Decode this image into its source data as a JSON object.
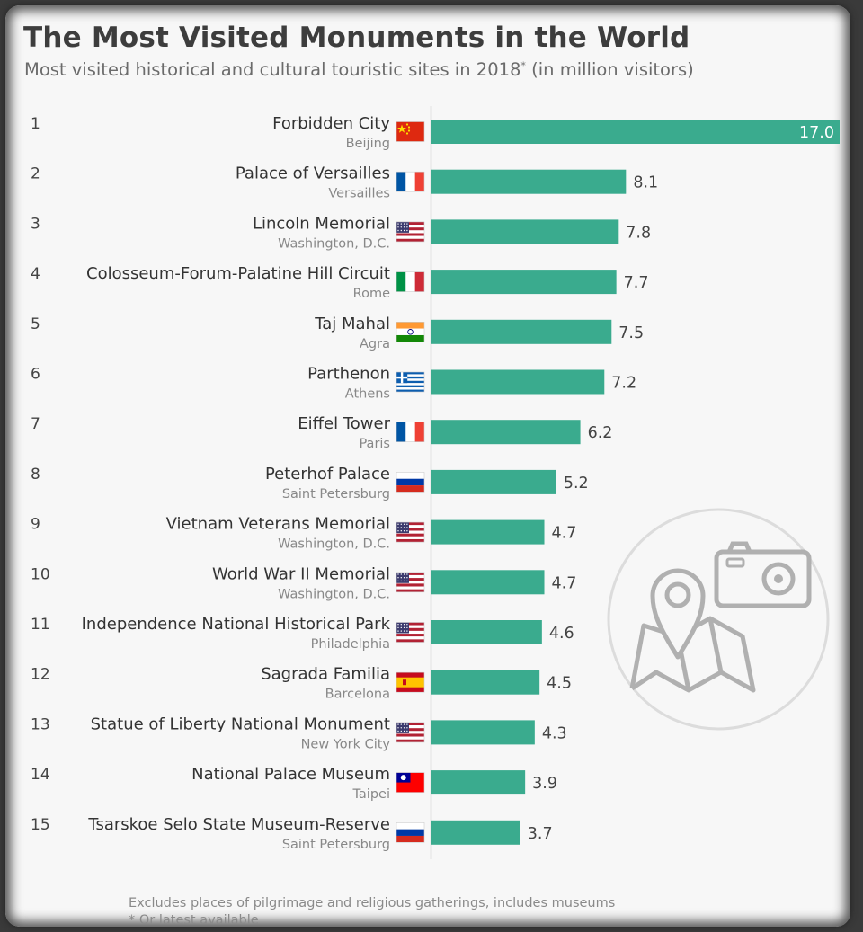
{
  "title": "The Most Visited Monuments in the World",
  "subtitle": "Most visited historical and cultural touristic sites in 2018",
  "subtitle_mark": "*",
  "subtitle_unit": " (in million visitors)",
  "footnotes": [
    "Excludes places of pilgrimage and religious gatherings, includes museums",
    "* Or latest available"
  ],
  "colors": {
    "bar": "#3aab8e",
    "axis": "#cfcfcf",
    "background": "#f7f7f7"
  },
  "icon": "map-pin-camera-icon",
  "chart_data": {
    "type": "bar",
    "orientation": "horizontal",
    "title": "The Most Visited Monuments in the World",
    "subtitle": "Most visited historical and cultural touristic sites in 2018* (in million visitors)",
    "xlim": [
      0,
      17
    ],
    "grid": false,
    "categories": [
      {
        "rank": "1",
        "name": "Forbidden City",
        "city": "Beijing",
        "flag": "china",
        "value": 17.0,
        "label": "17.0"
      },
      {
        "rank": "2",
        "name": "Palace of Versailles",
        "city": "Versailles",
        "flag": "france",
        "value": 8.1,
        "label": "8.1"
      },
      {
        "rank": "3",
        "name": "Lincoln Memorial",
        "city": "Washington, D.C.",
        "flag": "usa",
        "value": 7.8,
        "label": "7.8"
      },
      {
        "rank": "4",
        "name": "Colosseum-Forum-Palatine Hill Circuit",
        "city": "Rome",
        "flag": "italy",
        "value": 7.7,
        "label": "7.7"
      },
      {
        "rank": "5",
        "name": "Taj Mahal",
        "city": "Agra",
        "flag": "india",
        "value": 7.5,
        "label": "7.5"
      },
      {
        "rank": "6",
        "name": "Parthenon",
        "city": "Athens",
        "flag": "greece",
        "value": 7.2,
        "label": "7.2"
      },
      {
        "rank": "7",
        "name": "Eiffel Tower",
        "city": "Paris",
        "flag": "france",
        "value": 6.2,
        "label": "6.2"
      },
      {
        "rank": "8",
        "name": "Peterhof Palace",
        "city": "Saint Petersburg",
        "flag": "russia",
        "value": 5.2,
        "label": "5.2"
      },
      {
        "rank": "9",
        "name": "Vietnam Veterans Memorial",
        "city": "Washington, D.C.",
        "flag": "usa",
        "value": 4.7,
        "label": "4.7"
      },
      {
        "rank": "10",
        "name": "World War II Memorial",
        "city": "Washington, D.C.",
        "flag": "usa",
        "value": 4.7,
        "label": "4.7"
      },
      {
        "rank": "11",
        "name": "Independence National Historical Park",
        "city": "Philadelphia",
        "flag": "usa",
        "value": 4.6,
        "label": "4.6"
      },
      {
        "rank": "12",
        "name": "Sagrada Familia",
        "city": "Barcelona",
        "flag": "spain",
        "value": 4.5,
        "label": "4.5"
      },
      {
        "rank": "13",
        "name": "Statue of Liberty National Monument",
        "city": "New York City",
        "flag": "usa",
        "value": 4.3,
        "label": "4.3"
      },
      {
        "rank": "14",
        "name": "National Palace Museum",
        "city": "Taipei",
        "flag": "taiwan",
        "value": 3.9,
        "label": "3.9"
      },
      {
        "rank": "15",
        "name": "Tsarskoe Selo State Museum-Reserve",
        "city": "Saint Petersburg",
        "flag": "russia",
        "value": 3.7,
        "label": "3.7"
      }
    ]
  }
}
